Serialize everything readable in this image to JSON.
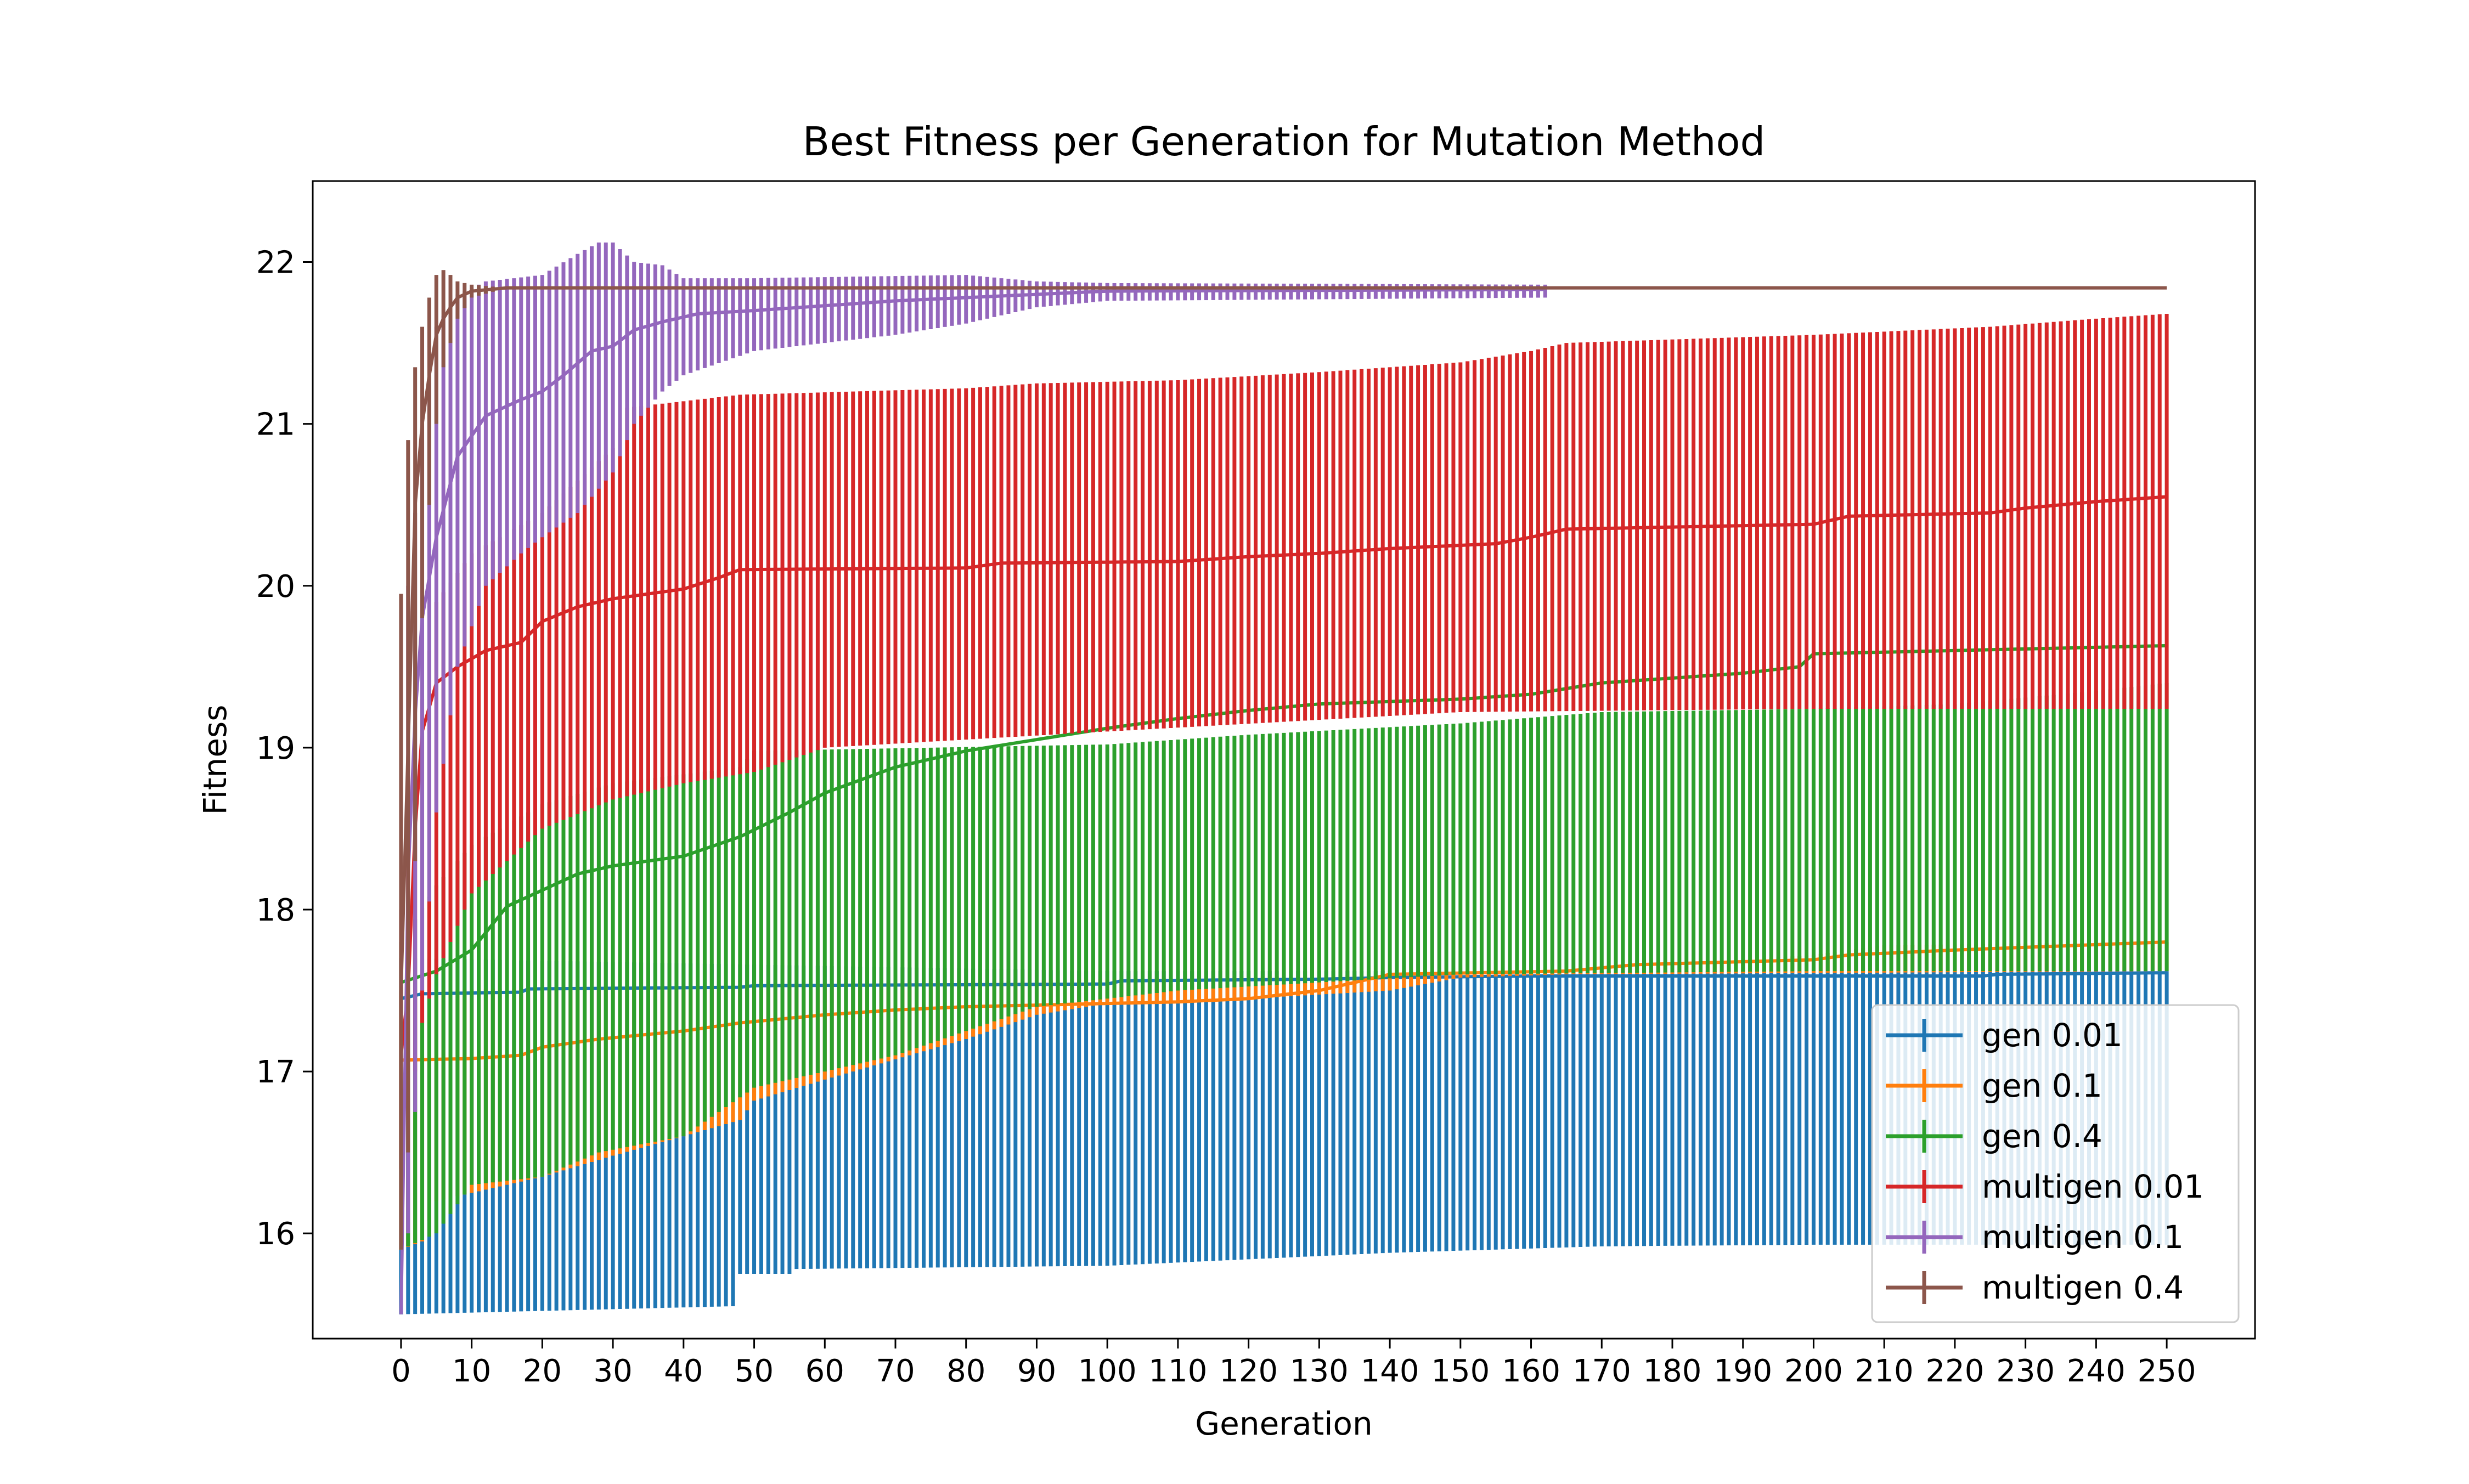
{
  "chart_data": {
    "type": "line",
    "title": "Best Fitness per Generation for Mutation Method",
    "xlabel": "Generation",
    "ylabel": "Fitness",
    "xlim": [
      -12.5,
      262.5
    ],
    "ylim": [
      15.35,
      22.5
    ],
    "x_ticks": [
      0,
      10,
      20,
      30,
      40,
      50,
      60,
      70,
      80,
      90,
      100,
      110,
      120,
      130,
      140,
      150,
      160,
      170,
      180,
      190,
      200,
      210,
      220,
      230,
      240,
      250
    ],
    "y_ticks": [
      16,
      17,
      18,
      19,
      20,
      21,
      22
    ],
    "grid": false,
    "legend_position": "lower-right",
    "error_bars": "vertical, one per generation",
    "series": [
      {
        "name": "gen 0.01",
        "color": "#1f77b4",
        "x_last": 250,
        "mean": [
          [
            0,
            17.45
          ],
          [
            3,
            17.48
          ],
          [
            17,
            17.49
          ],
          [
            18,
            17.51
          ],
          [
            48,
            17.52
          ],
          [
            50,
            17.53
          ],
          [
            100,
            17.54
          ],
          [
            102,
            17.56
          ],
          [
            130,
            17.57
          ],
          [
            140,
            17.58
          ],
          [
            160,
            17.59
          ],
          [
            180,
            17.59
          ],
          [
            224,
            17.59
          ],
          [
            226,
            17.6
          ],
          [
            250,
            17.61
          ]
        ],
        "lower": [
          [
            0,
            15.5
          ],
          [
            47,
            15.55
          ],
          [
            48,
            15.75
          ],
          [
            55,
            15.75
          ],
          [
            56,
            15.78
          ],
          [
            100,
            15.8
          ],
          [
            125,
            15.85
          ],
          [
            140,
            15.88
          ],
          [
            170,
            15.92
          ],
          [
            200,
            15.93
          ],
          [
            250,
            15.93
          ]
        ],
        "upper": [
          [
            0,
            17.7
          ],
          [
            100,
            17.62
          ],
          [
            250,
            17.62
          ]
        ]
      },
      {
        "name": "gen 0.1",
        "color": "#ff7f0e",
        "x_last": 250,
        "mean": [
          [
            0,
            17.07
          ],
          [
            10,
            17.08
          ],
          [
            17,
            17.1
          ],
          [
            20,
            17.15
          ],
          [
            28,
            17.2
          ],
          [
            40,
            17.25
          ],
          [
            48,
            17.3
          ],
          [
            60,
            17.35
          ],
          [
            70,
            17.38
          ],
          [
            80,
            17.4
          ],
          [
            100,
            17.42
          ],
          [
            110,
            17.43
          ],
          [
            120,
            17.45
          ],
          [
            130,
            17.5
          ],
          [
            140,
            17.6
          ],
          [
            165,
            17.62
          ],
          [
            175,
            17.66
          ],
          [
            200,
            17.69
          ],
          [
            205,
            17.72
          ],
          [
            220,
            17.75
          ],
          [
            250,
            17.8
          ]
        ],
        "lower": [
          [
            0,
            15.9
          ],
          [
            3,
            15.95
          ],
          [
            5,
            16.2
          ],
          [
            20,
            16.35
          ],
          [
            30,
            16.48
          ],
          [
            40,
            16.6
          ],
          [
            48,
            16.7
          ],
          [
            50,
            16.82
          ],
          [
            60,
            16.95
          ],
          [
            80,
            17.2
          ],
          [
            90,
            17.35
          ],
          [
            100,
            17.42
          ],
          [
            120,
            17.45
          ],
          [
            140,
            17.5
          ],
          [
            150,
            17.58
          ],
          [
            165,
            17.6
          ],
          [
            250,
            17.62
          ]
        ],
        "upper": [
          [
            0,
            17.5
          ],
          [
            140,
            17.6
          ],
          [
            160,
            17.62
          ],
          [
            180,
            17.66
          ],
          [
            200,
            17.72
          ],
          [
            210,
            17.78
          ],
          [
            250,
            17.8
          ]
        ]
      },
      {
        "name": "gen 0.4",
        "color": "#2ca02c",
        "x_last": 250,
        "mean": [
          [
            0,
            17.55
          ],
          [
            5,
            17.62
          ],
          [
            10,
            17.75
          ],
          [
            15,
            18.02
          ],
          [
            20,
            18.12
          ],
          [
            25,
            18.22
          ],
          [
            30,
            18.27
          ],
          [
            40,
            18.33
          ],
          [
            48,
            18.45
          ],
          [
            55,
            18.6
          ],
          [
            60,
            18.72
          ],
          [
            70,
            18.88
          ],
          [
            80,
            18.98
          ],
          [
            90,
            19.05
          ],
          [
            100,
            19.12
          ],
          [
            110,
            19.18
          ],
          [
            120,
            19.23
          ],
          [
            130,
            19.27
          ],
          [
            150,
            19.3
          ],
          [
            160,
            19.33
          ],
          [
            170,
            19.4
          ],
          [
            180,
            19.43
          ],
          [
            190,
            19.46
          ],
          [
            198,
            19.5
          ],
          [
            200,
            19.58
          ],
          [
            220,
            19.6
          ],
          [
            250,
            19.63
          ]
        ],
        "lower": [
          [
            0,
            15.9
          ],
          [
            5,
            16.0
          ],
          [
            10,
            16.3
          ],
          [
            20,
            16.35
          ],
          [
            28,
            16.5
          ],
          [
            40,
            16.6
          ],
          [
            50,
            16.9
          ],
          [
            60,
            17.0
          ],
          [
            70,
            17.1
          ],
          [
            80,
            17.25
          ],
          [
            90,
            17.4
          ],
          [
            100,
            17.45
          ],
          [
            110,
            17.5
          ],
          [
            130,
            17.55
          ],
          [
            150,
            17.6
          ],
          [
            200,
            17.62
          ],
          [
            250,
            17.62
          ]
        ],
        "upper": [
          [
            0,
            17.8
          ],
          [
            5,
            18.15
          ],
          [
            10,
            18.4
          ],
          [
            20,
            18.65
          ],
          [
            30,
            18.78
          ],
          [
            48,
            18.88
          ],
          [
            50,
            18.98
          ],
          [
            100,
            19.02
          ],
          [
            120,
            19.08
          ],
          [
            150,
            19.15
          ],
          [
            170,
            19.22
          ],
          [
            200,
            19.24
          ],
          [
            220,
            19.27
          ],
          [
            240,
            19.35
          ],
          [
            250,
            19.4
          ]
        ]
      },
      {
        "name": "multigen 0.01",
        "color": "#d62728",
        "x_last": 250,
        "mean": [
          [
            0,
            17.1
          ],
          [
            1,
            17.5
          ],
          [
            2,
            18.5
          ],
          [
            3,
            19.1
          ],
          [
            5,
            19.4
          ],
          [
            8,
            19.5
          ],
          [
            12,
            19.6
          ],
          [
            17,
            19.65
          ],
          [
            20,
            19.78
          ],
          [
            25,
            19.87
          ],
          [
            30,
            19.92
          ],
          [
            35,
            19.95
          ],
          [
            40,
            19.98
          ],
          [
            45,
            20.05
          ],
          [
            48,
            20.1
          ],
          [
            80,
            20.11
          ],
          [
            85,
            20.14
          ],
          [
            110,
            20.15
          ],
          [
            120,
            20.18
          ],
          [
            130,
            20.2
          ],
          [
            140,
            20.23
          ],
          [
            155,
            20.26
          ],
          [
            160,
            20.3
          ],
          [
            165,
            20.35
          ],
          [
            200,
            20.38
          ],
          [
            205,
            20.43
          ],
          [
            225,
            20.45
          ],
          [
            230,
            20.48
          ],
          [
            240,
            20.52
          ],
          [
            250,
            20.55
          ]
        ],
        "lower": [
          [
            0,
            16.4
          ],
          [
            3,
            17.3
          ],
          [
            5,
            17.6
          ],
          [
            10,
            18.1
          ],
          [
            20,
            18.5
          ],
          [
            30,
            18.68
          ],
          [
            40,
            18.78
          ],
          [
            50,
            18.85
          ],
          [
            60,
            19.0
          ],
          [
            80,
            19.05
          ],
          [
            100,
            19.1
          ],
          [
            150,
            19.22
          ],
          [
            200,
            19.24
          ],
          [
            250,
            19.24
          ]
        ],
        "upper": [
          [
            0,
            18.0
          ],
          [
            3,
            19.3
          ],
          [
            5,
            19.9
          ],
          [
            10,
            20.2
          ],
          [
            20,
            20.45
          ],
          [
            30,
            20.85
          ],
          [
            32,
            21.1
          ],
          [
            48,
            21.18
          ],
          [
            80,
            21.22
          ],
          [
            90,
            21.25
          ],
          [
            110,
            21.27
          ],
          [
            130,
            21.32
          ],
          [
            140,
            21.35
          ],
          [
            150,
            21.38
          ],
          [
            160,
            21.45
          ],
          [
            165,
            21.5
          ],
          [
            200,
            21.55
          ],
          [
            225,
            21.6
          ],
          [
            240,
            21.65
          ],
          [
            250,
            21.68
          ]
        ]
      },
      {
        "name": "multigen 0.1",
        "color": "#9467bd",
        "x_last": 162,
        "mean": [
          [
            0,
            15.5
          ],
          [
            1,
            18.2
          ],
          [
            2,
            19.2
          ],
          [
            3,
            19.8
          ],
          [
            5,
            20.3
          ],
          [
            8,
            20.8
          ],
          [
            12,
            21.05
          ],
          [
            17,
            21.15
          ],
          [
            20,
            21.2
          ],
          [
            23,
            21.3
          ],
          [
            27,
            21.45
          ],
          [
            30,
            21.48
          ],
          [
            33,
            21.58
          ],
          [
            37,
            21.63
          ],
          [
            42,
            21.68
          ],
          [
            50,
            21.7
          ],
          [
            60,
            21.73
          ],
          [
            70,
            21.76
          ],
          [
            80,
            21.78
          ],
          [
            90,
            21.8
          ],
          [
            100,
            21.82
          ],
          [
            162,
            21.83
          ]
        ],
        "lower": [
          [
            0,
            15.5
          ],
          [
            1,
            16.0
          ],
          [
            3,
            17.5
          ],
          [
            5,
            18.6
          ],
          [
            8,
            19.5
          ],
          [
            12,
            20.0
          ],
          [
            17,
            20.2
          ],
          [
            20,
            20.3
          ],
          [
            25,
            20.45
          ],
          [
            30,
            20.7
          ],
          [
            33,
            21.0
          ],
          [
            37,
            21.2
          ],
          [
            40,
            21.3
          ],
          [
            50,
            21.45
          ],
          [
            60,
            21.5
          ],
          [
            70,
            21.55
          ],
          [
            80,
            21.62
          ],
          [
            90,
            21.72
          ],
          [
            100,
            21.76
          ],
          [
            162,
            21.78
          ]
        ],
        "upper": [
          [
            0,
            15.5
          ],
          [
            1,
            20.0
          ],
          [
            3,
            20.9
          ],
          [
            5,
            21.6
          ],
          [
            8,
            21.8
          ],
          [
            12,
            21.88
          ],
          [
            20,
            21.92
          ],
          [
            25,
            22.05
          ],
          [
            28,
            22.12
          ],
          [
            30,
            22.12
          ],
          [
            33,
            22.0
          ],
          [
            37,
            21.98
          ],
          [
            40,
            21.9
          ],
          [
            50,
            21.9
          ],
          [
            80,
            21.92
          ],
          [
            90,
            21.88
          ],
          [
            100,
            21.87
          ],
          [
            162,
            21.86
          ]
        ]
      },
      {
        "name": "multigen 0.4",
        "color": "#8c564b",
        "x_last": 250,
        "mean": [
          [
            0,
            17.5
          ],
          [
            1,
            19.0
          ],
          [
            2,
            20.5
          ],
          [
            3,
            21.0
          ],
          [
            4,
            21.3
          ],
          [
            5,
            21.55
          ],
          [
            6,
            21.65
          ],
          [
            7,
            21.72
          ],
          [
            8,
            21.78
          ],
          [
            10,
            21.82
          ],
          [
            15,
            21.84
          ],
          [
            250,
            21.84
          ]
        ],
        "lower": [
          [
            0,
            15.9
          ],
          [
            1,
            16.5
          ],
          [
            2,
            18.3
          ],
          [
            3,
            19.8
          ],
          [
            4,
            20.5
          ],
          [
            5,
            21.0
          ],
          [
            6,
            21.35
          ],
          [
            7,
            21.5
          ],
          [
            8,
            21.65
          ],
          [
            10,
            21.78
          ],
          [
            15,
            21.84
          ],
          [
            250,
            21.84
          ]
        ],
        "upper": [
          [
            0,
            19.95
          ],
          [
            1,
            20.9
          ],
          [
            2,
            21.35
          ],
          [
            3,
            21.6
          ],
          [
            4,
            21.78
          ],
          [
            5,
            21.92
          ],
          [
            6,
            21.95
          ],
          [
            7,
            21.92
          ],
          [
            8,
            21.88
          ],
          [
            10,
            21.86
          ],
          [
            15,
            21.84
          ],
          [
            250,
            21.84
          ]
        ]
      }
    ]
  }
}
